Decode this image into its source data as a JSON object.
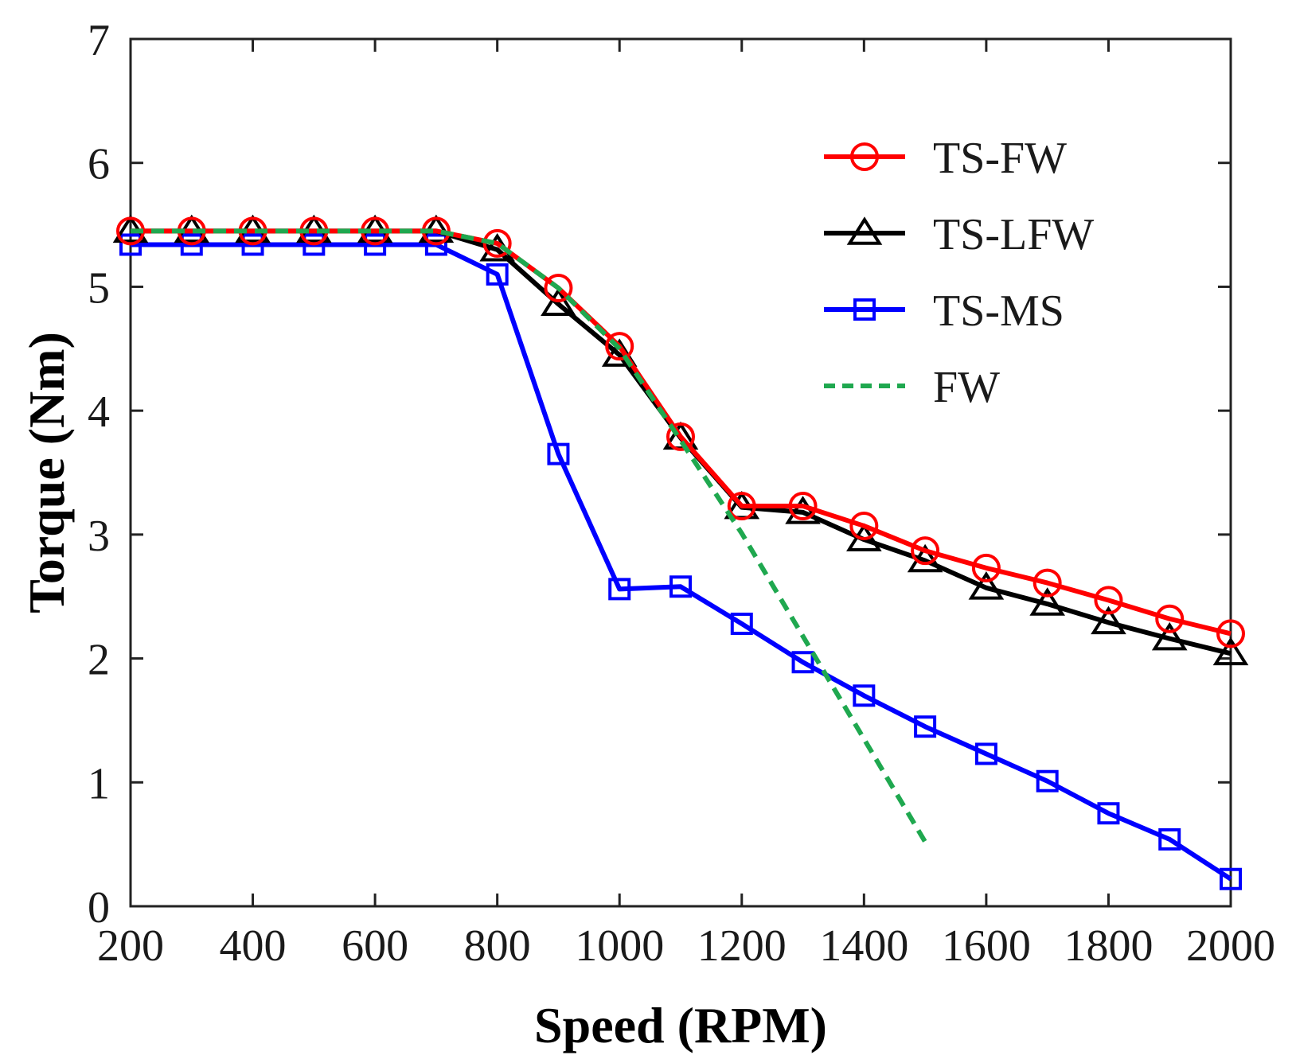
{
  "chart_data": {
    "type": "line",
    "xlabel": "Speed (RPM)",
    "ylabel": "Torque (Nm)",
    "xlim": [
      200,
      2000
    ],
    "ylim": [
      0,
      7
    ],
    "xticks": [
      200,
      400,
      600,
      800,
      1000,
      1200,
      1400,
      1600,
      1800,
      2000
    ],
    "yticks": [
      0,
      1,
      2,
      3,
      4,
      5,
      6,
      7
    ],
    "grid": false,
    "legend_position": "top-right",
    "series": [
      {
        "name": "TS-FW",
        "color": "#ff0000",
        "marker": "circle",
        "line_style": "solid",
        "x": [
          200,
          300,
          400,
          500,
          600,
          700,
          800,
          900,
          1000,
          1100,
          1200,
          1300,
          1400,
          1500,
          1600,
          1700,
          1800,
          1900,
          2000
        ],
        "values": [
          5.45,
          5.45,
          5.45,
          5.45,
          5.45,
          5.45,
          5.35,
          4.99,
          4.52,
          3.79,
          3.23,
          3.23,
          3.07,
          2.87,
          2.73,
          2.61,
          2.47,
          2.32,
          2.2
        ]
      },
      {
        "name": "TS-LFW",
        "color": "#000000",
        "marker": "triangle",
        "line_style": "solid",
        "x": [
          200,
          300,
          400,
          500,
          600,
          700,
          800,
          900,
          1000,
          1100,
          1200,
          1300,
          1400,
          1500,
          1600,
          1700,
          1800,
          1900,
          2000
        ],
        "values": [
          5.45,
          5.45,
          5.45,
          5.45,
          5.45,
          5.45,
          5.3,
          4.86,
          4.45,
          3.78,
          3.22,
          3.18,
          2.96,
          2.79,
          2.57,
          2.44,
          2.29,
          2.16,
          2.04
        ]
      },
      {
        "name": "TS-MS",
        "color": "#0000ff",
        "marker": "square",
        "line_style": "solid",
        "x": [
          200,
          300,
          400,
          500,
          600,
          700,
          800,
          900,
          1000,
          1100,
          1200,
          1300,
          1400,
          1500,
          1600,
          1700,
          1800,
          1900,
          2000
        ],
        "values": [
          5.34,
          5.34,
          5.34,
          5.34,
          5.34,
          5.34,
          5.1,
          3.65,
          2.56,
          2.58,
          2.28,
          1.97,
          1.7,
          1.45,
          1.23,
          1.01,
          0.75,
          0.54,
          0.22
        ]
      },
      {
        "name": "FW",
        "color": "#1fa84f",
        "marker": "none",
        "line_style": "dashed",
        "x": [
          200,
          300,
          400,
          500,
          600,
          700,
          800,
          900,
          1000,
          1100,
          1200,
          1300,
          1400,
          1500
        ],
        "values": [
          5.45,
          5.45,
          5.45,
          5.45,
          5.45,
          5.45,
          5.35,
          4.99,
          4.5,
          3.76,
          3.01,
          2.18,
          1.35,
          0.52
        ]
      }
    ]
  }
}
